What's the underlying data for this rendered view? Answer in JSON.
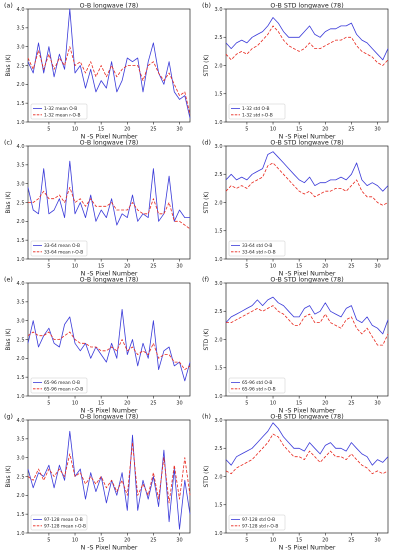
{
  "colors": {
    "series1": "#3b3bd9",
    "series2": "#e8281e",
    "axis": "#222222"
  },
  "chart_data": [
    {
      "type": "line",
      "panel_label": "(a)",
      "title": "O-B longwave (78)",
      "xlabel": "N -S Pixel Number",
      "ylabel": "Bias (K)",
      "xlim": [
        1,
        32
      ],
      "ylim": [
        1.0,
        4.0
      ],
      "xticks": [
        "5",
        "10",
        "15",
        "20",
        "25",
        "30"
      ],
      "yticks": [
        "1.0",
        "1.5",
        "2.0",
        "2.5",
        "3.0",
        "3.5",
        "4.0"
      ],
      "legend_position": "lower-left",
      "grid": false,
      "x": [
        1,
        2,
        3,
        4,
        5,
        6,
        7,
        8,
        9,
        10,
        11,
        12,
        13,
        14,
        15,
        16,
        17,
        18,
        19,
        20,
        21,
        22,
        23,
        24,
        25,
        26,
        27,
        28,
        29,
        30,
        31,
        32
      ],
      "series": [
        {
          "name": "1-32 mean O-B",
          "style": "solid",
          "values": [
            2.6,
            2.3,
            3.1,
            2.3,
            3.0,
            2.2,
            2.8,
            2.4,
            4.0,
            2.3,
            2.5,
            1.9,
            2.4,
            1.8,
            2.1,
            1.9,
            2.6,
            1.8,
            2.1,
            2.7,
            2.6,
            2.7,
            1.8,
            2.6,
            3.1,
            2.3,
            2.0,
            2.6,
            1.8,
            1.6,
            1.7,
            1.1
          ]
        },
        {
          "name": "1-32 mean r-O-B",
          "style": "dashed",
          "values": [
            2.7,
            2.4,
            2.9,
            2.4,
            2.8,
            2.4,
            2.7,
            2.5,
            3.0,
            2.5,
            2.6,
            2.3,
            2.6,
            2.2,
            2.5,
            2.2,
            2.5,
            2.2,
            2.4,
            2.5,
            2.5,
            2.5,
            2.1,
            2.5,
            2.6,
            2.3,
            2.1,
            2.3,
            2.0,
            1.7,
            1.8,
            1.2
          ]
        }
      ]
    },
    {
      "type": "line",
      "panel_label": "(b)",
      "title": "O-B STD longwave (78)",
      "xlabel": "N -S Pixel Number",
      "ylabel": "STD (K)",
      "xlim": [
        1,
        32
      ],
      "ylim": [
        1.0,
        3.0
      ],
      "xticks": [
        "5",
        "10",
        "15",
        "20",
        "25",
        "30"
      ],
      "yticks": [
        "1.0",
        "1.5",
        "2.0",
        "2.5",
        "3.0"
      ],
      "legend_position": "lower-left",
      "grid": false,
      "x": [
        1,
        2,
        3,
        4,
        5,
        6,
        7,
        8,
        9,
        10,
        11,
        12,
        13,
        14,
        15,
        16,
        17,
        18,
        19,
        20,
        21,
        22,
        23,
        24,
        25,
        26,
        27,
        28,
        29,
        30,
        31,
        32
      ],
      "series": [
        {
          "name": "1-32 std O-B",
          "style": "solid",
          "values": [
            2.4,
            2.3,
            2.4,
            2.45,
            2.4,
            2.5,
            2.55,
            2.6,
            2.7,
            2.85,
            2.75,
            2.6,
            2.5,
            2.5,
            2.5,
            2.6,
            2.7,
            2.55,
            2.5,
            2.6,
            2.65,
            2.65,
            2.7,
            2.7,
            2.75,
            2.55,
            2.45,
            2.4,
            2.3,
            2.2,
            2.1,
            2.3
          ]
        },
        {
          "name": "1-32 std r-O-B",
          "style": "dashed",
          "values": [
            2.2,
            2.1,
            2.2,
            2.25,
            2.2,
            2.3,
            2.35,
            2.45,
            2.55,
            2.7,
            2.6,
            2.45,
            2.35,
            2.3,
            2.25,
            2.3,
            2.4,
            2.3,
            2.3,
            2.35,
            2.4,
            2.45,
            2.45,
            2.5,
            2.5,
            2.35,
            2.25,
            2.2,
            2.15,
            2.05,
            2.0,
            2.1
          ]
        }
      ]
    },
    {
      "type": "line",
      "panel_label": "(c)",
      "title": "O-B longwave (78)",
      "xlabel": "N -S Pixel Number",
      "ylabel": "Bias (K)",
      "xlim": [
        1,
        32
      ],
      "ylim": [
        1.0,
        4.0
      ],
      "xticks": [
        "5",
        "10",
        "15",
        "20",
        "25",
        "30"
      ],
      "yticks": [
        "1.0",
        "1.5",
        "2.0",
        "2.5",
        "3.0",
        "3.5",
        "4.0"
      ],
      "legend_position": "lower-left",
      "grid": false,
      "x": [
        1,
        2,
        3,
        4,
        5,
        6,
        7,
        8,
        9,
        10,
        11,
        12,
        13,
        14,
        15,
        16,
        17,
        18,
        19,
        20,
        21,
        22,
        23,
        24,
        25,
        26,
        27,
        28,
        29,
        30,
        31,
        32
      ],
      "series": [
        {
          "name": "33-64 mean O-B",
          "style": "solid",
          "values": [
            2.9,
            2.3,
            2.2,
            3.4,
            2.2,
            2.3,
            2.6,
            2.1,
            3.6,
            2.2,
            2.5,
            2.1,
            2.7,
            2.0,
            2.3,
            2.1,
            2.6,
            1.9,
            2.2,
            2.1,
            2.7,
            2.0,
            2.2,
            2.1,
            3.4,
            2.0,
            2.2,
            3.2,
            2.0,
            2.3,
            2.1,
            2.1
          ]
        },
        {
          "name": "33-64 mean r-O-B",
          "style": "dashed",
          "values": [
            2.5,
            2.5,
            2.6,
            2.8,
            2.6,
            2.6,
            2.7,
            2.5,
            2.9,
            2.5,
            2.6,
            2.4,
            2.6,
            2.4,
            2.4,
            2.4,
            2.5,
            2.3,
            2.3,
            2.3,
            2.5,
            2.3,
            2.2,
            2.2,
            2.6,
            2.2,
            2.2,
            2.5,
            2.0,
            2.0,
            1.9,
            1.8
          ]
        }
      ]
    },
    {
      "type": "line",
      "panel_label": "(d)",
      "title": "O-B STD longwave (78)",
      "xlabel": "N -S Pixel Number",
      "ylabel": "STD (K)",
      "xlim": [
        1,
        32
      ],
      "ylim": [
        1.0,
        3.0
      ],
      "xticks": [
        "5",
        "10",
        "15",
        "20",
        "25",
        "30"
      ],
      "yticks": [
        "1.0",
        "1.5",
        "2.0",
        "2.5",
        "3.0"
      ],
      "legend_position": "lower-left",
      "grid": false,
      "x": [
        1,
        2,
        3,
        4,
        5,
        6,
        7,
        8,
        9,
        10,
        11,
        12,
        13,
        14,
        15,
        16,
        17,
        18,
        19,
        20,
        21,
        22,
        23,
        24,
        25,
        26,
        27,
        28,
        29,
        30,
        31,
        32
      ],
      "series": [
        {
          "name": "33-64 std O-B",
          "style": "solid",
          "values": [
            2.4,
            2.5,
            2.4,
            2.45,
            2.4,
            2.5,
            2.55,
            2.6,
            2.85,
            2.9,
            2.8,
            2.7,
            2.6,
            2.5,
            2.4,
            2.35,
            2.45,
            2.3,
            2.35,
            2.35,
            2.4,
            2.4,
            2.45,
            2.4,
            2.5,
            2.7,
            2.4,
            2.3,
            2.35,
            2.3,
            2.2,
            2.3
          ]
        },
        {
          "name": "33-64 std r-O-B",
          "style": "dashed",
          "values": [
            2.2,
            2.3,
            2.25,
            2.3,
            2.25,
            2.35,
            2.4,
            2.45,
            2.65,
            2.7,
            2.6,
            2.5,
            2.4,
            2.3,
            2.2,
            2.15,
            2.2,
            2.1,
            2.15,
            2.2,
            2.2,
            2.25,
            2.25,
            2.2,
            2.3,
            2.4,
            2.2,
            2.1,
            2.1,
            2.0,
            1.95,
            2.0
          ]
        }
      ]
    },
    {
      "type": "line",
      "panel_label": "(e)",
      "title": "O-B longwave (78)",
      "xlabel": "N -S Pixel Number",
      "ylabel": "Bias (K)",
      "xlim": [
        1,
        32
      ],
      "ylim": [
        1.0,
        4.0
      ],
      "xticks": [
        "5",
        "10",
        "15",
        "20",
        "25",
        "30"
      ],
      "yticks": [
        "1.0",
        "1.5",
        "2.0",
        "2.5",
        "3.0",
        "3.5",
        "4.0"
      ],
      "legend_position": "lower-left",
      "grid": false,
      "x": [
        1,
        2,
        3,
        4,
        5,
        6,
        7,
        8,
        9,
        10,
        11,
        12,
        13,
        14,
        15,
        16,
        17,
        18,
        19,
        20,
        21,
        22,
        23,
        24,
        25,
        26,
        27,
        28,
        29,
        30,
        31,
        32
      ],
      "series": [
        {
          "name": "65-96 mean O-B",
          "style": "solid",
          "values": [
            2.4,
            3.0,
            2.3,
            2.6,
            2.8,
            2.4,
            2.3,
            2.9,
            3.1,
            2.4,
            2.2,
            2.4,
            2.0,
            2.3,
            2.1,
            1.9,
            2.4,
            2.0,
            3.3,
            2.1,
            2.5,
            1.8,
            2.4,
            2.0,
            3.0,
            1.7,
            2.2,
            2.3,
            1.8,
            1.9,
            1.4,
            1.9
          ]
        },
        {
          "name": "65-96 mean r-O-B",
          "style": "dashed",
          "values": [
            2.6,
            2.7,
            2.6,
            2.6,
            2.7,
            2.5,
            2.5,
            2.6,
            2.7,
            2.5,
            2.4,
            2.4,
            2.3,
            2.3,
            2.2,
            2.2,
            2.3,
            2.2,
            2.5,
            2.2,
            2.3,
            2.1,
            2.2,
            2.1,
            2.4,
            2.0,
            2.1,
            2.1,
            1.9,
            1.9,
            1.7,
            1.8
          ]
        }
      ]
    },
    {
      "type": "line",
      "panel_label": "(f)",
      "title": "O-B STD longwave (78)",
      "xlabel": "N -S Pixel Number",
      "ylabel": "STD (K)",
      "xlim": [
        1,
        32
      ],
      "ylim": [
        1.0,
        3.0
      ],
      "xticks": [
        "5",
        "10",
        "15",
        "20",
        "25",
        "30"
      ],
      "yticks": [
        "1.0",
        "1.5",
        "2.0",
        "2.5",
        "3.0"
      ],
      "legend_position": "lower-left",
      "grid": false,
      "x": [
        1,
        2,
        3,
        4,
        5,
        6,
        7,
        8,
        9,
        10,
        11,
        12,
        13,
        14,
        15,
        16,
        17,
        18,
        19,
        20,
        21,
        22,
        23,
        24,
        25,
        26,
        27,
        28,
        29,
        30,
        31,
        32
      ],
      "series": [
        {
          "name": "65-96 std O-B",
          "style": "solid",
          "values": [
            2.3,
            2.4,
            2.45,
            2.5,
            2.55,
            2.6,
            2.7,
            2.6,
            2.7,
            2.75,
            2.65,
            2.6,
            2.5,
            2.4,
            2.4,
            2.55,
            2.6,
            2.45,
            2.5,
            2.65,
            2.5,
            2.45,
            2.4,
            2.55,
            2.6,
            2.35,
            2.3,
            2.4,
            2.25,
            2.2,
            2.1,
            2.35
          ]
        },
        {
          "name": "65-96 std r-O-B",
          "style": "dashed",
          "values": [
            2.3,
            2.3,
            2.35,
            2.4,
            2.45,
            2.5,
            2.55,
            2.5,
            2.55,
            2.6,
            2.5,
            2.45,
            2.35,
            2.25,
            2.25,
            2.4,
            2.45,
            2.3,
            2.3,
            2.45,
            2.3,
            2.25,
            2.2,
            2.35,
            2.4,
            2.2,
            2.1,
            2.2,
            2.05,
            1.9,
            1.9,
            2.1
          ]
        }
      ]
    },
    {
      "type": "line",
      "panel_label": "(g)",
      "title": "O-B longwave (78)",
      "xlabel": "N -S Pixel Number",
      "ylabel": "Bias (K)",
      "xlim": [
        1,
        32
      ],
      "ylim": [
        1.0,
        4.0
      ],
      "xticks": [
        "5",
        "10",
        "15",
        "20",
        "25",
        "30"
      ],
      "yticks": [
        "1.0",
        "1.5",
        "2.0",
        "2.5",
        "3.0",
        "3.5",
        "4.0"
      ],
      "legend_position": "lower-left",
      "grid": false,
      "x": [
        1,
        2,
        3,
        4,
        5,
        6,
        7,
        8,
        9,
        10,
        11,
        12,
        13,
        14,
        15,
        16,
        17,
        18,
        19,
        20,
        21,
        22,
        23,
        24,
        25,
        26,
        27,
        28,
        29,
        30,
        31,
        32
      ],
      "series": [
        {
          "name": "97-128 mean O-B",
          "style": "solid",
          "values": [
            2.7,
            2.2,
            2.6,
            2.5,
            2.8,
            2.2,
            2.8,
            2.4,
            3.7,
            2.5,
            2.7,
            1.9,
            2.6,
            2.1,
            2.5,
            1.8,
            2.4,
            2.0,
            2.6,
            1.6,
            3.6,
            1.6,
            2.4,
            1.9,
            2.5,
            1.7,
            3.2,
            1.3,
            2.7,
            1.1,
            2.4,
            1.5
          ]
        },
        {
          "name": "97-128 mean r-O-B",
          "style": "dashed",
          "values": [
            2.5,
            2.4,
            2.7,
            2.4,
            2.7,
            2.5,
            2.7,
            2.5,
            3.1,
            2.5,
            2.6,
            2.3,
            2.5,
            2.3,
            2.5,
            2.2,
            2.4,
            2.1,
            2.4,
            2.0,
            3.4,
            2.0,
            2.3,
            2.0,
            2.6,
            1.9,
            3.0,
            1.8,
            2.8,
            1.9,
            3.0,
            2.0
          ]
        }
      ]
    },
    {
      "type": "line",
      "panel_label": "(h)",
      "title": "O-B STD longwave (78)",
      "xlabel": "N -S Pixel Number",
      "ylabel": "STD (K)",
      "xlim": [
        1,
        32
      ],
      "ylim": [
        1.0,
        3.0
      ],
      "xticks": [
        "5",
        "10",
        "15",
        "20",
        "25",
        "30"
      ],
      "yticks": [
        "1.0",
        "1.5",
        "2.0",
        "2.5",
        "3.0"
      ],
      "legend_position": "lower-left",
      "grid": false,
      "x": [
        1,
        2,
        3,
        4,
        5,
        6,
        7,
        8,
        9,
        10,
        11,
        12,
        13,
        14,
        15,
        16,
        17,
        18,
        19,
        20,
        21,
        22,
        23,
        24,
        25,
        26,
        27,
        28,
        29,
        30,
        31,
        32
      ],
      "series": [
        {
          "name": "97-128 std O-B",
          "style": "solid",
          "values": [
            2.3,
            2.2,
            2.35,
            2.4,
            2.45,
            2.5,
            2.6,
            2.7,
            2.8,
            2.95,
            2.85,
            2.7,
            2.6,
            2.5,
            2.5,
            2.45,
            2.6,
            2.5,
            2.4,
            2.55,
            2.6,
            2.5,
            2.5,
            2.45,
            2.6,
            2.5,
            2.4,
            2.35,
            2.2,
            2.3,
            2.25,
            2.35
          ]
        },
        {
          "name": "97-128 std r-O-B",
          "style": "dashed",
          "values": [
            2.1,
            2.05,
            2.15,
            2.2,
            2.25,
            2.3,
            2.4,
            2.5,
            2.6,
            2.75,
            2.7,
            2.55,
            2.45,
            2.35,
            2.35,
            2.3,
            2.45,
            2.35,
            2.25,
            2.35,
            2.45,
            2.35,
            2.35,
            2.3,
            2.4,
            2.3,
            2.2,
            2.15,
            2.05,
            2.1,
            2.05,
            2.1
          ]
        }
      ]
    }
  ]
}
